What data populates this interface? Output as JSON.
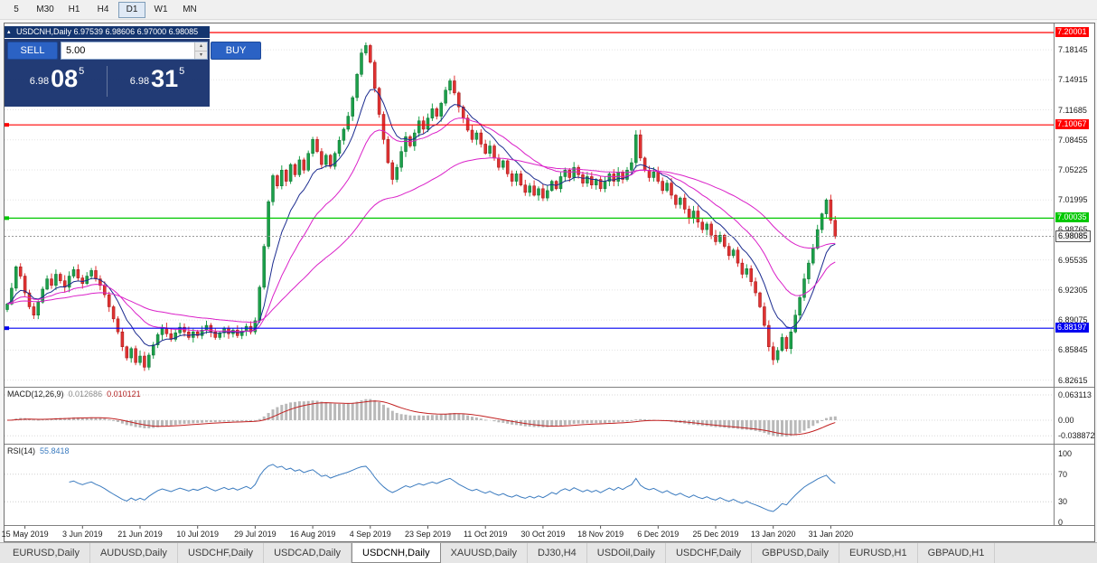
{
  "toolbar": {
    "buttons": [
      "5",
      "M30",
      "H1",
      "H4",
      "D1",
      "W1",
      "MN"
    ],
    "active": "D1"
  },
  "chart": {
    "title": "USDCNH,Daily 6.97539 6.98606 6.97000 6.98085"
  },
  "trade_panel": {
    "sell_label": "SELL",
    "buy_label": "BUY",
    "volume": "5.00",
    "sell_price": {
      "prefix": "6.98",
      "big": "08",
      "sup": "5"
    },
    "buy_price": {
      "prefix": "6.98",
      "big": "31",
      "sup": "5"
    }
  },
  "price_axis": {
    "labels": [
      "7.18145",
      "7.14915",
      "7.11685",
      "7.08455",
      "7.05225",
      "7.01995",
      "6.98765",
      "6.95535",
      "6.92305",
      "6.89075",
      "6.85845",
      "6.82615"
    ],
    "lines": [
      {
        "label": "7.20001",
        "price": 7.20001,
        "color": "#ff0000"
      },
      {
        "label": "7.10067",
        "price": 7.10067,
        "color": "#ff0000"
      },
      {
        "label": "7.00035",
        "price": 7.00035,
        "color": "#00c800"
      },
      {
        "label": "6.88197",
        "price": 6.88197,
        "color": "#0000f0"
      }
    ],
    "current": {
      "label": "6.98085",
      "price": 6.98085
    }
  },
  "macd": {
    "name": "MACD(12,26,9)",
    "value_main": "0.012686",
    "value_signal": "0.010121",
    "axis_labels": [
      "0.063113",
      "0.00",
      "-0.038872"
    ]
  },
  "rsi": {
    "name": "RSI(14)",
    "value": "55.8418",
    "axis_labels": [
      "100",
      "70",
      "30",
      "0"
    ]
  },
  "tabs": {
    "items": [
      "EURUSD,Daily",
      "AUDUSD,Daily",
      "USDCHF,Daily",
      "USDCAD,Daily",
      "USDCNH,Daily",
      "XAUUSD,Daily",
      "DJ30,H4",
      "USDOil,Daily",
      "USDCHF,Daily",
      "GBPUSD,Daily",
      "EURUSD,H1",
      "GBPAUD,H1"
    ],
    "active_index": 4
  },
  "colors": {
    "up": "#1ca04a",
    "up_edge": "#0c6e31",
    "down": "#e03232",
    "down_edge": "#9b1515",
    "ma_fast": "#1b2b8f",
    "ma_slow": "#da20c8",
    "macd_hist": "#b9b9b9",
    "macd_signal": "#c22020",
    "rsi": "#3b7bbf"
  },
  "chart_data": {
    "type": "candlestick",
    "symbol": "USDCNH",
    "timeframe": "Daily",
    "last_ohlc": {
      "open": 6.97539,
      "high": 6.98606,
      "low": 6.97,
      "close": 6.98085
    },
    "ylim": [
      6.819,
      7.2097
    ],
    "x_labels": [
      "15 May 2019",
      "3 Jun 2019",
      "21 Jun 2019",
      "10 Jul 2019",
      "29 Jul 2019",
      "16 Aug 2019",
      "4 Sep 2019",
      "23 Sep 2019",
      "11 Oct 2019",
      "30 Oct 2019",
      "18 Nov 2019",
      "6 Dec 2019",
      "25 Dec 2019",
      "13 Jan 2020",
      "31 Jan 2020"
    ],
    "first_label_bar": 4,
    "bars_per_label": 13,
    "closes": [
      6.908,
      6.925,
      6.948,
      6.938,
      6.92,
      6.905,
      6.896,
      6.91,
      6.924,
      6.935,
      6.928,
      6.94,
      6.933,
      6.926,
      6.938,
      6.945,
      6.936,
      6.93,
      6.938,
      6.944,
      6.935,
      6.928,
      6.918,
      6.905,
      6.892,
      6.878,
      6.862,
      6.85,
      6.86,
      6.845,
      6.852,
      6.84,
      6.853,
      6.864,
      6.875,
      6.882,
      6.876,
      6.87,
      6.877,
      6.883,
      6.878,
      6.872,
      6.878,
      6.874,
      6.88,
      6.885,
      6.878,
      6.872,
      6.877,
      6.882,
      6.876,
      6.88,
      6.874,
      6.879,
      6.884,
      6.878,
      6.89,
      6.926,
      6.97,
      7.018,
      7.046,
      7.035,
      7.052,
      7.04,
      7.058,
      7.047,
      7.063,
      7.052,
      7.07,
      7.085,
      7.072,
      7.058,
      7.068,
      7.056,
      7.07,
      7.084,
      7.096,
      7.11,
      7.13,
      7.155,
      7.178,
      7.186,
      7.168,
      7.14,
      7.112,
      7.085,
      7.06,
      7.042,
      7.055,
      7.072,
      7.088,
      7.078,
      7.092,
      7.105,
      7.096,
      7.108,
      7.118,
      7.11,
      7.124,
      7.138,
      7.148,
      7.135,
      7.12,
      7.108,
      7.095,
      7.085,
      7.092,
      7.08,
      7.07,
      7.078,
      7.065,
      7.055,
      7.062,
      7.048,
      7.04,
      7.048,
      7.036,
      7.028,
      7.035,
      7.025,
      7.032,
      7.022,
      7.03,
      7.04,
      7.032,
      7.045,
      7.052,
      7.044,
      7.055,
      7.047,
      7.038,
      7.045,
      7.036,
      7.042,
      7.032,
      7.04,
      7.048,
      7.04,
      7.05,
      7.042,
      7.052,
      7.06,
      7.09,
      7.065,
      7.052,
      7.044,
      7.05,
      7.04,
      7.03,
      7.038,
      7.025,
      7.015,
      7.022,
      7.01,
      7.0,
      7.008,
      6.996,
      6.988,
      6.994,
      6.982,
      6.975,
      6.982,
      6.97,
      6.96,
      6.966,
      6.952,
      6.94,
      6.946,
      6.932,
      6.92,
      6.905,
      6.885,
      6.862,
      6.848,
      6.858,
      6.872,
      6.86,
      6.878,
      6.896,
      6.915,
      6.935,
      6.952,
      6.968,
      6.988,
      7.005,
      7.02,
      6.998,
      6.981
    ],
    "overlays": [
      {
        "name": "ema-fast",
        "period": 9,
        "color": "#1b2b8f"
      },
      {
        "name": "ema-mid",
        "period": 21,
        "color": "#da20c8"
      },
      {
        "name": "ema-slow",
        "period": 55,
        "color": "#da20c8"
      }
    ],
    "h_lines": [
      {
        "price": 7.20001,
        "color": "#ff0000"
      },
      {
        "price": 7.10067,
        "color": "#ff0000"
      },
      {
        "price": 7.00035,
        "color": "#00c800"
      },
      {
        "price": 6.88197,
        "color": "#0000f0"
      }
    ],
    "indicators": [
      {
        "type": "macd",
        "params": [
          12,
          26,
          9
        ],
        "current_main": 0.012686,
        "current_signal": 0.010121,
        "axis": [
          0.063113,
          0.0,
          -0.038872
        ]
      },
      {
        "type": "rsi",
        "params": [
          14
        ],
        "current": 55.8418,
        "levels": [
          100,
          70,
          30,
          0
        ]
      }
    ]
  }
}
